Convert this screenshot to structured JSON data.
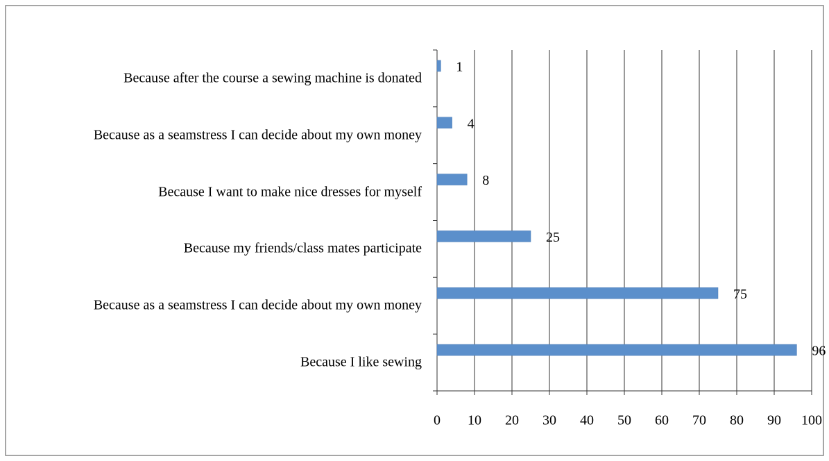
{
  "chart_data": {
    "type": "bar",
    "orientation": "horizontal",
    "categories": [
      "Because after the course a sewing machine is donated",
      "Because as a seamstress I can decide about my own money",
      "Because I want to make nice dresses for myself",
      "Because my friends/class mates participate",
      "Because as a seamstress I can decide about my own money",
      "Because I like sewing"
    ],
    "values": [
      1,
      4,
      8,
      25,
      75,
      96
    ],
    "color": "#5b8fcb",
    "xlim": [
      0,
      100
    ],
    "xticks": [
      0,
      10,
      20,
      30,
      40,
      50,
      60,
      70,
      80,
      90,
      100
    ],
    "grid": true
  }
}
